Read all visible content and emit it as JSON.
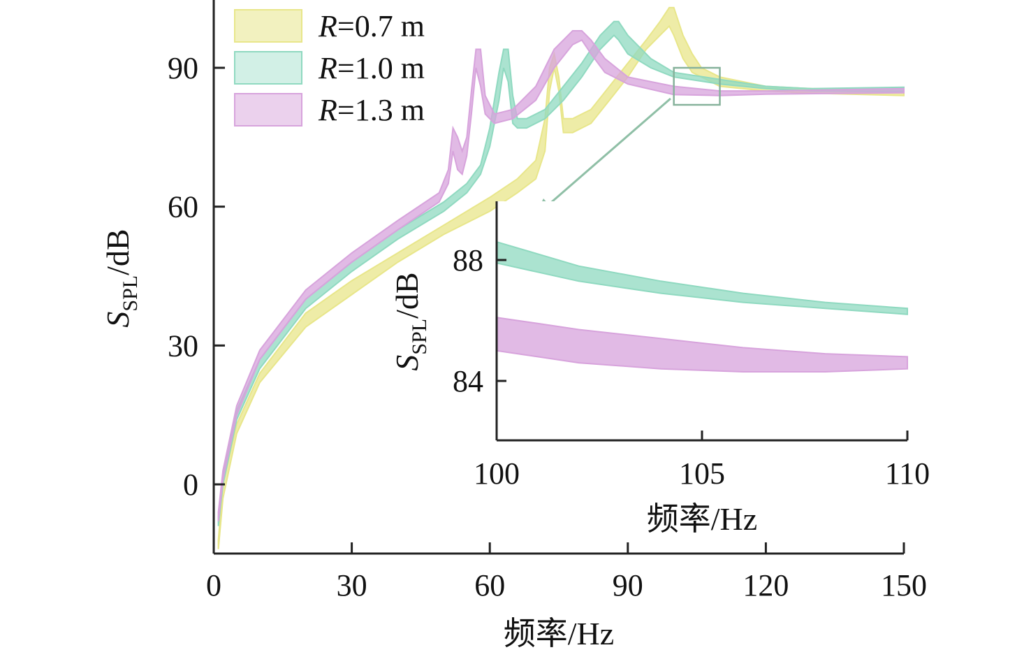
{
  "chart_data": [
    {
      "type": "area",
      "panel": "main",
      "xlabel": "频率/Hz",
      "ylabel_main": "S",
      "ylabel_sub": "SPL",
      "ylabel_unit": "/dB",
      "xlim": [
        0,
        150
      ],
      "ylim": [
        -15,
        105
      ],
      "xticks": [
        0,
        30,
        60,
        90,
        120,
        150
      ],
      "yticks": [
        0,
        30,
        60,
        90
      ],
      "legend_position": "top-left",
      "series": [
        {
          "name_var": "R",
          "name_value": "=0.7 m",
          "color": "#e8e68a",
          "x": [
            1,
            2,
            5,
            10,
            20,
            30,
            40,
            50,
            60,
            66,
            70,
            72,
            73,
            74,
            75,
            76,
            78,
            82,
            86,
            90,
            94,
            97,
            99,
            100,
            102,
            104,
            106,
            110,
            120,
            130,
            150
          ],
          "lower": [
            -14,
            -3,
            11,
            22,
            34,
            41,
            48,
            54,
            59,
            63,
            66,
            72,
            85,
            90,
            85,
            76,
            76,
            78,
            83,
            88,
            94,
            97,
            99,
            97,
            92,
            89,
            88,
            86,
            85,
            84.5,
            84
          ],
          "upper": [
            -12,
            0,
            13,
            24,
            37,
            44,
            50,
            56,
            62,
            66,
            70,
            79,
            90,
            93,
            88,
            79,
            79,
            81,
            86,
            91,
            96,
            100,
            103,
            103,
            97,
            93,
            90,
            88,
            86,
            85.5,
            85
          ]
        },
        {
          "name_var": "R",
          "name_value": "=1.0 m",
          "color": "#8fd9c0",
          "x": [
            1,
            2,
            5,
            10,
            20,
            30,
            40,
            50,
            55,
            58,
            60,
            62,
            63,
            64,
            65,
            66,
            68,
            72,
            76,
            80,
            84,
            87,
            88,
            90,
            95,
            100,
            110,
            120,
            130,
            150
          ],
          "lower": [
            -9,
            0,
            14,
            25,
            38,
            46,
            53,
            59,
            63,
            67,
            73,
            83,
            90,
            87,
            78,
            77,
            77,
            79,
            83,
            88,
            94,
            97,
            96,
            93,
            90,
            88,
            86.5,
            85.5,
            85,
            84.8
          ],
          "upper": [
            -7,
            2,
            16,
            27,
            40,
            48,
            55,
            61,
            65,
            69,
            77,
            89,
            94,
            94,
            84,
            79,
            79,
            81,
            86,
            91,
            97,
            100,
            100,
            97,
            92,
            89,
            87.5,
            86,
            85.5,
            85.8
          ]
        },
        {
          "name_var": "R",
          "name_value": "=1.3 m",
          "color": "#d7a3dc",
          "x": [
            1,
            2,
            5,
            10,
            20,
            30,
            40,
            49,
            51,
            52,
            53,
            54,
            55,
            56,
            57,
            58,
            59,
            61,
            65,
            70,
            74,
            78,
            80,
            82,
            85,
            90,
            100,
            110,
            120,
            150
          ],
          "lower": [
            -8,
            1,
            15,
            27,
            40,
            48,
            55,
            61,
            65,
            72,
            68,
            67,
            71,
            80,
            90,
            86,
            80,
            78,
            79,
            83,
            90,
            95,
            96,
            93,
            89,
            86.5,
            84.2,
            84,
            84.3,
            84.6
          ],
          "upper": [
            -6,
            3,
            17,
            29,
            42,
            50,
            57,
            63,
            68,
            77,
            75,
            72,
            75,
            85,
            94,
            94,
            84,
            80,
            81,
            86,
            94,
            98,
            98,
            96,
            92,
            88,
            86,
            85,
            85,
            85.5
          ]
        }
      ]
    },
    {
      "type": "area",
      "panel": "inset",
      "xlabel": "频率/Hz",
      "ylabel_main": "S",
      "ylabel_sub": "SPL",
      "ylabel_unit": "/dB",
      "xlim": [
        100,
        110
      ],
      "ylim": [
        82,
        90
      ],
      "xticks": [
        100,
        105,
        110
      ],
      "yticks": [
        84,
        88
      ],
      "series": [
        {
          "name_var": "R",
          "name_value": "=1.0 m",
          "color": "#8fd9c0",
          "x": [
            100,
            101,
            102,
            104,
            106,
            108,
            110
          ],
          "lower": [
            87.9,
            87.6,
            87.3,
            86.9,
            86.6,
            86.4,
            86.2
          ],
          "upper": [
            88.6,
            88.2,
            87.8,
            87.3,
            86.9,
            86.6,
            86.4
          ]
        },
        {
          "name_var": "R",
          "name_value": "=1.3 m",
          "color": "#d7a3dc",
          "x": [
            100,
            101,
            102,
            104,
            106,
            108,
            110
          ],
          "lower": [
            85.0,
            84.8,
            84.6,
            84.4,
            84.3,
            84.3,
            84.4
          ],
          "upper": [
            86.1,
            85.9,
            85.7,
            85.4,
            85.1,
            84.9,
            84.8
          ]
        }
      ]
    }
  ]
}
